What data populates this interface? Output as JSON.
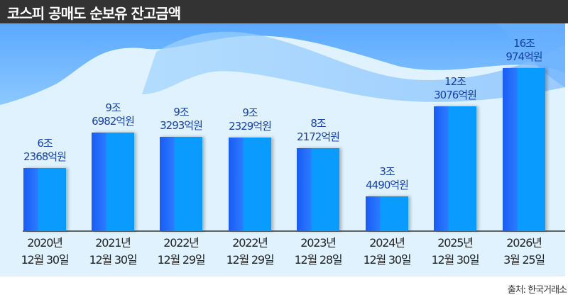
{
  "header": {
    "title": "코스피 공매도 순보유 잔고금액"
  },
  "source": "출처: 한국거래소",
  "colors": {
    "bar": "#0a9bff",
    "bar_dark": "#1a5cf5",
    "label": "#1740a8",
    "header_bg": "#333333",
    "plot_bg": "#dff2fd"
  },
  "chart_data": {
    "type": "bar",
    "title": "코스피 공매도 순보유 잔고금액",
    "unit": "조원",
    "categories": [
      [
        "2020년",
        "12월 30일"
      ],
      [
        "2021년",
        "12월 30일"
      ],
      [
        "2022년",
        "12월 29일"
      ],
      [
        "2022년",
        "12월 29일"
      ],
      [
        "2023년",
        "12월 28일"
      ],
      [
        "2024년",
        "12월 30일"
      ],
      [
        "2025년",
        "12월 30일"
      ],
      [
        "2026년",
        "3월 25일"
      ]
    ],
    "values": [
      6.2368,
      9.6982,
      9.3293,
      9.2329,
      8.2172,
      3.449,
      12.3076,
      16.0974
    ],
    "data_labels": [
      [
        "6조",
        "2368억원"
      ],
      [
        "9조",
        "6982억원"
      ],
      [
        "9조",
        "3293억원"
      ],
      [
        "9조",
        "2329억원"
      ],
      [
        "8조",
        "2172억원"
      ],
      [
        "3조",
        "4490억원"
      ],
      [
        "12조",
        "3076억원"
      ],
      [
        "16조",
        "974억원"
      ]
    ],
    "ylim": [
      0,
      16.1
    ],
    "grid": false
  }
}
